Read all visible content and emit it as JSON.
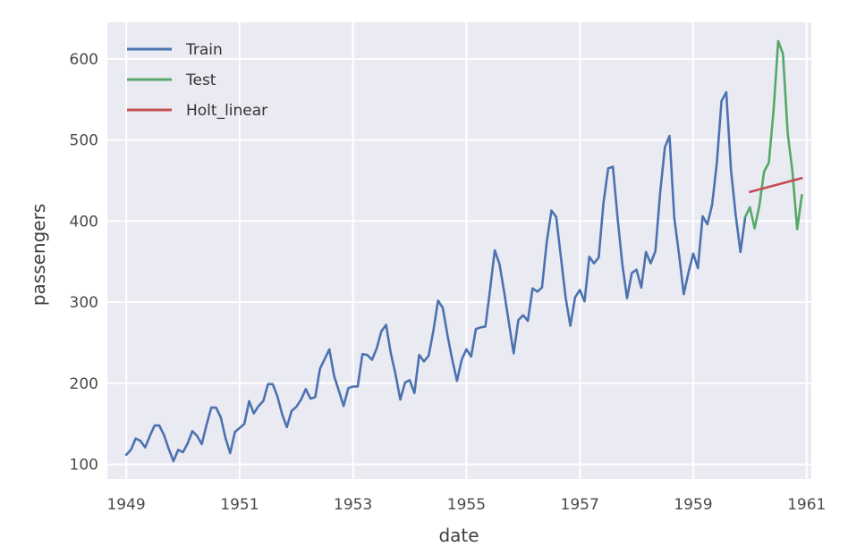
{
  "chart_data": {
    "type": "line",
    "title": "",
    "xlabel": "date",
    "ylabel": "passengers",
    "x_ticks": [
      "1949",
      "1951",
      "1953",
      "1955",
      "1957",
      "1959",
      "1961"
    ],
    "y_ticks": [
      100,
      200,
      300,
      400,
      500,
      600
    ],
    "xlim": [
      "1948-09",
      "1961-02"
    ],
    "ylim": [
      82,
      645
    ],
    "grid": true,
    "legend_position": "top-left",
    "series": [
      {
        "name": "Train",
        "color": "#4c72b0",
        "x": [
          "1949-01",
          "1949-02",
          "1949-03",
          "1949-04",
          "1949-05",
          "1949-06",
          "1949-07",
          "1949-08",
          "1949-09",
          "1949-10",
          "1949-11",
          "1949-12",
          "1950-01",
          "1950-02",
          "1950-03",
          "1950-04",
          "1950-05",
          "1950-06",
          "1950-07",
          "1950-08",
          "1950-09",
          "1950-10",
          "1950-11",
          "1950-12",
          "1951-01",
          "1951-02",
          "1951-03",
          "1951-04",
          "1951-05",
          "1951-06",
          "1951-07",
          "1951-08",
          "1951-09",
          "1951-10",
          "1951-11",
          "1951-12",
          "1952-01",
          "1952-02",
          "1952-03",
          "1952-04",
          "1952-05",
          "1952-06",
          "1952-07",
          "1952-08",
          "1952-09",
          "1952-10",
          "1952-11",
          "1952-12",
          "1953-01",
          "1953-02",
          "1953-03",
          "1953-04",
          "1953-05",
          "1953-06",
          "1953-07",
          "1953-08",
          "1953-09",
          "1953-10",
          "1953-11",
          "1953-12",
          "1954-01",
          "1954-02",
          "1954-03",
          "1954-04",
          "1954-05",
          "1954-06",
          "1954-07",
          "1954-08",
          "1954-09",
          "1954-10",
          "1954-11",
          "1954-12",
          "1955-01",
          "1955-02",
          "1955-03",
          "1955-04",
          "1955-05",
          "1955-06",
          "1955-07",
          "1955-08",
          "1955-09",
          "1955-10",
          "1955-11",
          "1955-12",
          "1956-01",
          "1956-02",
          "1956-03",
          "1956-04",
          "1956-05",
          "1956-06",
          "1956-07",
          "1956-08",
          "1956-09",
          "1956-10",
          "1956-11",
          "1956-12",
          "1957-01",
          "1957-02",
          "1957-03",
          "1957-04",
          "1957-05",
          "1957-06",
          "1957-07",
          "1957-08",
          "1957-09",
          "1957-10",
          "1957-11",
          "1957-12",
          "1958-01",
          "1958-02",
          "1958-03",
          "1958-04",
          "1958-05",
          "1958-06",
          "1958-07",
          "1958-08",
          "1958-09",
          "1958-10",
          "1958-11",
          "1958-12",
          "1959-01",
          "1959-02",
          "1959-03",
          "1959-04",
          "1959-05",
          "1959-06",
          "1959-07",
          "1959-08",
          "1959-09",
          "1959-10",
          "1959-11",
          "1959-12"
        ],
        "values": [
          112,
          118,
          132,
          129,
          121,
          135,
          148,
          148,
          136,
          119,
          104,
          118,
          115,
          126,
          141,
          135,
          125,
          149,
          170,
          170,
          158,
          133,
          114,
          140,
          145,
          150,
          178,
          163,
          172,
          178,
          199,
          199,
          184,
          162,
          146,
          166,
          171,
          180,
          193,
          181,
          183,
          218,
          230,
          242,
          209,
          191,
          172,
          194,
          196,
          196,
          236,
          235,
          229,
          243,
          264,
          272,
          237,
          211,
          180,
          201,
          204,
          188,
          235,
          227,
          234,
          264,
          302,
          293,
          259,
          229,
          203,
          229,
          242,
          233,
          267,
          269,
          270,
          315,
          364,
          347,
          312,
          274,
          237,
          278,
          284,
          277,
          317,
          313,
          318,
          374,
          413,
          405,
          355,
          306,
          271,
          306,
          315,
          301,
          356,
          348,
          355,
          422,
          465,
          467,
          404,
          347,
          305,
          336,
          340,
          318,
          362,
          348,
          363,
          435,
          491,
          505,
          404,
          359,
          310,
          337,
          360,
          342,
          406,
          396,
          420,
          472,
          548,
          559,
          463,
          407,
          362,
          405
        ]
      },
      {
        "name": "Test",
        "color": "#55a868",
        "x": [
          "1959-12",
          "1960-01",
          "1960-02",
          "1960-03",
          "1960-04",
          "1960-05",
          "1960-06",
          "1960-07",
          "1960-08",
          "1960-09",
          "1960-10",
          "1960-11",
          "1960-12"
        ],
        "values": [
          405,
          417,
          391,
          419,
          461,
          472,
          535,
          622,
          606,
          508,
          461,
          390,
          432
        ]
      },
      {
        "name": "Holt_linear",
        "color": "#c44e52",
        "x": [
          "1960-01",
          "1960-12"
        ],
        "values": [
          436,
          453
        ]
      }
    ]
  }
}
